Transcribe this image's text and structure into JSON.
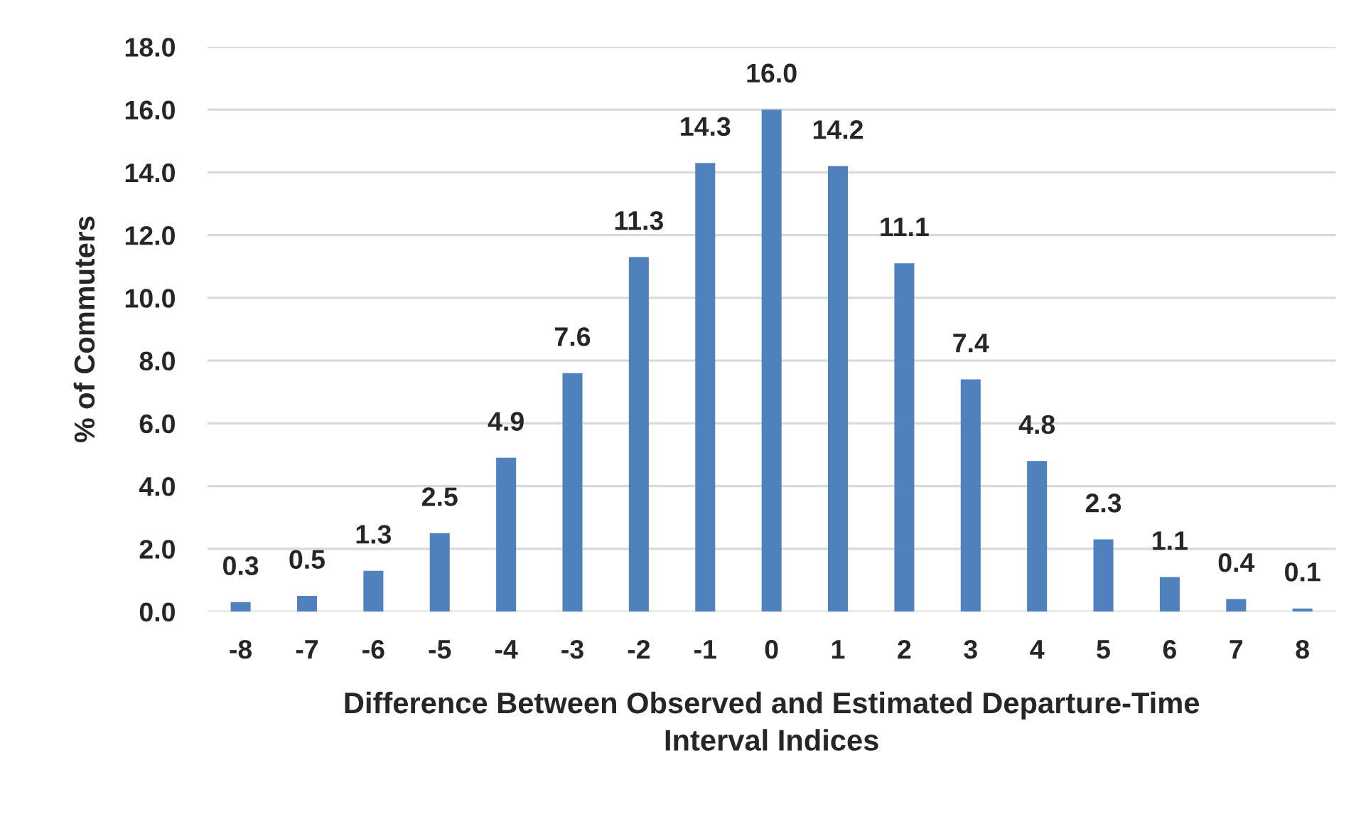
{
  "chart_data": {
    "type": "bar",
    "xlabel": "Difference Between Observed and Estimated Departure-Time\nInterval Indices",
    "ylabel": "% of Commuters",
    "categories": [
      "-8",
      "-7",
      "-6",
      "-5",
      "-4",
      "-3",
      "-2",
      "-1",
      "0",
      "1",
      "2",
      "3",
      "4",
      "5",
      "6",
      "7",
      "8"
    ],
    "values": [
      0.3,
      0.5,
      1.3,
      2.5,
      4.9,
      7.6,
      11.3,
      14.3,
      16.0,
      14.2,
      11.1,
      7.4,
      4.8,
      2.3,
      1.1,
      0.4,
      0.1
    ],
    "value_labels": [
      "0.3",
      "0.5",
      "1.3",
      "2.5",
      "4.9",
      "7.6",
      "11.3",
      "14.3",
      "16.0",
      "14.2",
      "11.1",
      "7.4",
      "4.8",
      "2.3",
      "1.1",
      "0.4",
      "0.1"
    ],
    "color": "#4f81bd",
    "ylim": [
      0,
      18
    ],
    "yticks": [
      {
        "value": 0,
        "label": "0.0"
      },
      {
        "value": 2,
        "label": "2.0"
      },
      {
        "value": 4,
        "label": "4.0"
      },
      {
        "value": 6,
        "label": "6.0"
      },
      {
        "value": 8,
        "label": "8.0"
      },
      {
        "value": 10,
        "label": "10.0"
      },
      {
        "value": 12,
        "label": "12.0"
      },
      {
        "value": 14,
        "label": "14.0"
      },
      {
        "value": 16,
        "label": "16.0"
      },
      {
        "value": 18,
        "label": "18.0"
      }
    ],
    "grid": "y"
  }
}
